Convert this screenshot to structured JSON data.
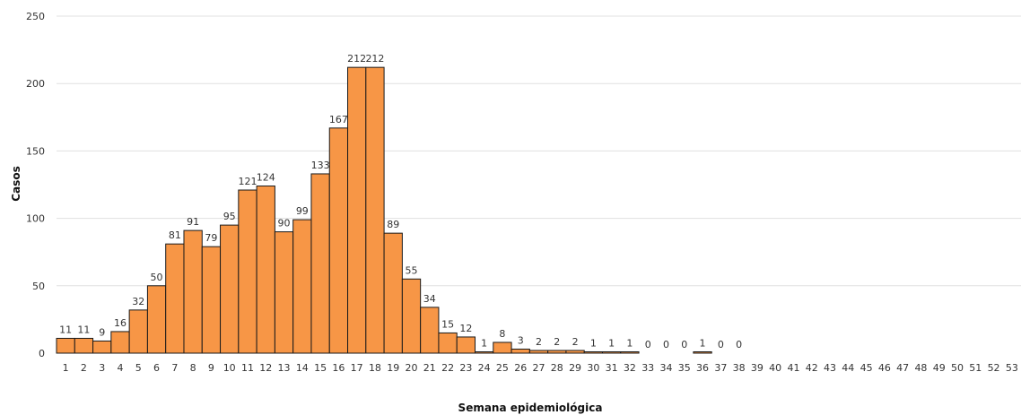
{
  "chart_data": {
    "type": "bar",
    "title": "",
    "xlabel": "Semana epidemiológica",
    "ylabel": "Casos",
    "ylim": [
      0,
      250
    ],
    "yticks": [
      0,
      50,
      100,
      150,
      200,
      250
    ],
    "grid": "horizontal",
    "legend": "none",
    "bar_color": "#f79646",
    "bar_stroke": "#1a1a1a",
    "gridline_color": "#e0e0e0",
    "categories": [
      "1",
      "2",
      "3",
      "4",
      "5",
      "6",
      "7",
      "8",
      "9",
      "10",
      "11",
      "12",
      "13",
      "14",
      "15",
      "16",
      "17",
      "18",
      "19",
      "20",
      "21",
      "22",
      "23",
      "24",
      "25",
      "26",
      "27",
      "28",
      "29",
      "30",
      "31",
      "32",
      "33",
      "34",
      "35",
      "36",
      "37",
      "38",
      "39",
      "40",
      "41",
      "42",
      "43",
      "44",
      "45",
      "46",
      "47",
      "48",
      "49",
      "50",
      "51",
      "52",
      "53"
    ],
    "values": [
      11,
      11,
      9,
      16,
      32,
      50,
      81,
      91,
      79,
      95,
      121,
      124,
      90,
      99,
      133,
      167,
      212,
      212,
      89,
      55,
      34,
      15,
      12,
      1,
      8,
      3,
      2,
      2,
      2,
      1,
      1,
      1,
      0,
      0,
      0,
      1,
      0,
      0,
      null,
      null,
      null,
      null,
      null,
      null,
      null,
      null,
      null,
      null,
      null,
      null,
      null,
      null,
      null
    ]
  }
}
